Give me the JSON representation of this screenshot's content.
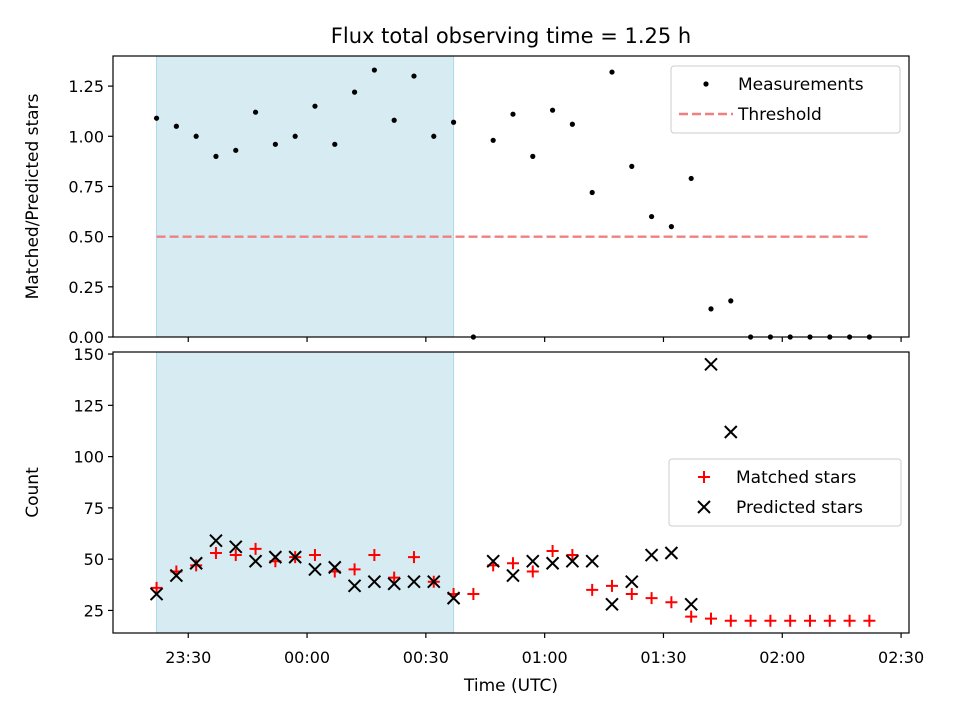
{
  "chart_data": {
    "title": "Flux total observing time = 1.25 h",
    "x_axis": {
      "label": "Time (UTC)",
      "range": [
        "23:11",
        "02:32"
      ],
      "ticks": [
        {
          "t": "23:30",
          "label": "23:30"
        },
        {
          "t": "00:00",
          "label": "00:00"
        },
        {
          "t": "00:30",
          "label": "00:30"
        },
        {
          "t": "01:00",
          "label": "01:00"
        },
        {
          "t": "01:30",
          "label": "01:30"
        },
        {
          "t": "02:00",
          "label": "02:00"
        },
        {
          "t": "02:30",
          "label": "02:30"
        }
      ]
    },
    "shaded_span": {
      "start": "23:22",
      "end": "00:37",
      "color": "#add8e6"
    },
    "times": [
      "23:22",
      "23:27",
      "23:32",
      "23:37",
      "23:42",
      "23:47",
      "23:52",
      "23:57",
      "00:02",
      "00:07",
      "00:12",
      "00:17",
      "00:22",
      "00:27",
      "00:32",
      "00:37",
      "00:42",
      "00:47",
      "00:52",
      "00:57",
      "01:02",
      "01:07",
      "01:12",
      "01:17",
      "01:22",
      "01:27",
      "01:32",
      "01:37",
      "01:42",
      "01:47",
      "01:52",
      "01:57",
      "02:02",
      "02:07",
      "02:12",
      "02:17",
      "02:22"
    ],
    "panels": [
      {
        "type": "scatter",
        "ylabel": "Matched/Predicted stars",
        "ylim": [
          0,
          1.4
        ],
        "yticks": [
          {
            "v": 0.0,
            "label": "0.00"
          },
          {
            "v": 0.25,
            "label": "0.25"
          },
          {
            "v": 0.5,
            "label": "0.50"
          },
          {
            "v": 0.75,
            "label": "0.75"
          },
          {
            "v": 1.0,
            "label": "1.00"
          },
          {
            "v": 1.25,
            "label": "1.25"
          }
        ],
        "legend": {
          "placement": "top-right"
        },
        "series": [
          {
            "name": "Measurements",
            "marker": "dot",
            "color": "#000000",
            "values": [
              1.09,
              1.05,
              1.0,
              0.9,
              0.93,
              1.12,
              0.96,
              1.0,
              1.15,
              0.96,
              1.22,
              1.33,
              1.08,
              1.3,
              1.0,
              1.07,
              0.0,
              0.98,
              1.11,
              0.9,
              1.13,
              1.06,
              0.72,
              1.32,
              0.85,
              0.6,
              0.55,
              0.79,
              0.14,
              0.18,
              0.0,
              0.0,
              0.0,
              0.0,
              0.0,
              0.0,
              0.0
            ]
          }
        ],
        "lines": [
          {
            "name": "Threshold",
            "style": "dashed",
            "color": "#f08080",
            "y": 0.5,
            "x_start": "23:22",
            "x_end": "02:22"
          }
        ]
      },
      {
        "type": "scatter",
        "ylabel": "Count",
        "ylim": [
          14,
          151
        ],
        "yticks": [
          {
            "v": 25,
            "label": "25"
          },
          {
            "v": 50,
            "label": "50"
          },
          {
            "v": 75,
            "label": "75"
          },
          {
            "v": 100,
            "label": "100"
          },
          {
            "v": 125,
            "label": "125"
          },
          {
            "v": 150,
            "label": "150"
          }
        ],
        "legend": {
          "placement": "center-right"
        },
        "series": [
          {
            "name": "Matched stars",
            "marker": "plus",
            "color": "#ff0000",
            "values": [
              36,
              44,
              47,
              53,
              52,
              55,
              49,
              51,
              52,
              44,
              45,
              52,
              41,
              51,
              39,
              33,
              33,
              47,
              48,
              44,
              54,
              52,
              35,
              37,
              33,
              31,
              29,
              22,
              21,
              20,
              20,
              20,
              20,
              20,
              20,
              20,
              20
            ]
          },
          {
            "name": "Predicted stars",
            "marker": "x",
            "color": "#000000",
            "values": [
              33,
              42,
              48,
              59,
              56,
              49,
              51,
              51,
              45,
              46,
              37,
              39,
              38,
              39,
              39,
              31,
              null,
              49,
              42,
              49,
              48,
              49,
              49,
              28,
              39,
              52,
              53,
              28,
              145,
              112,
              null,
              null,
              null,
              null,
              null,
              null,
              null
            ]
          }
        ]
      }
    ]
  }
}
